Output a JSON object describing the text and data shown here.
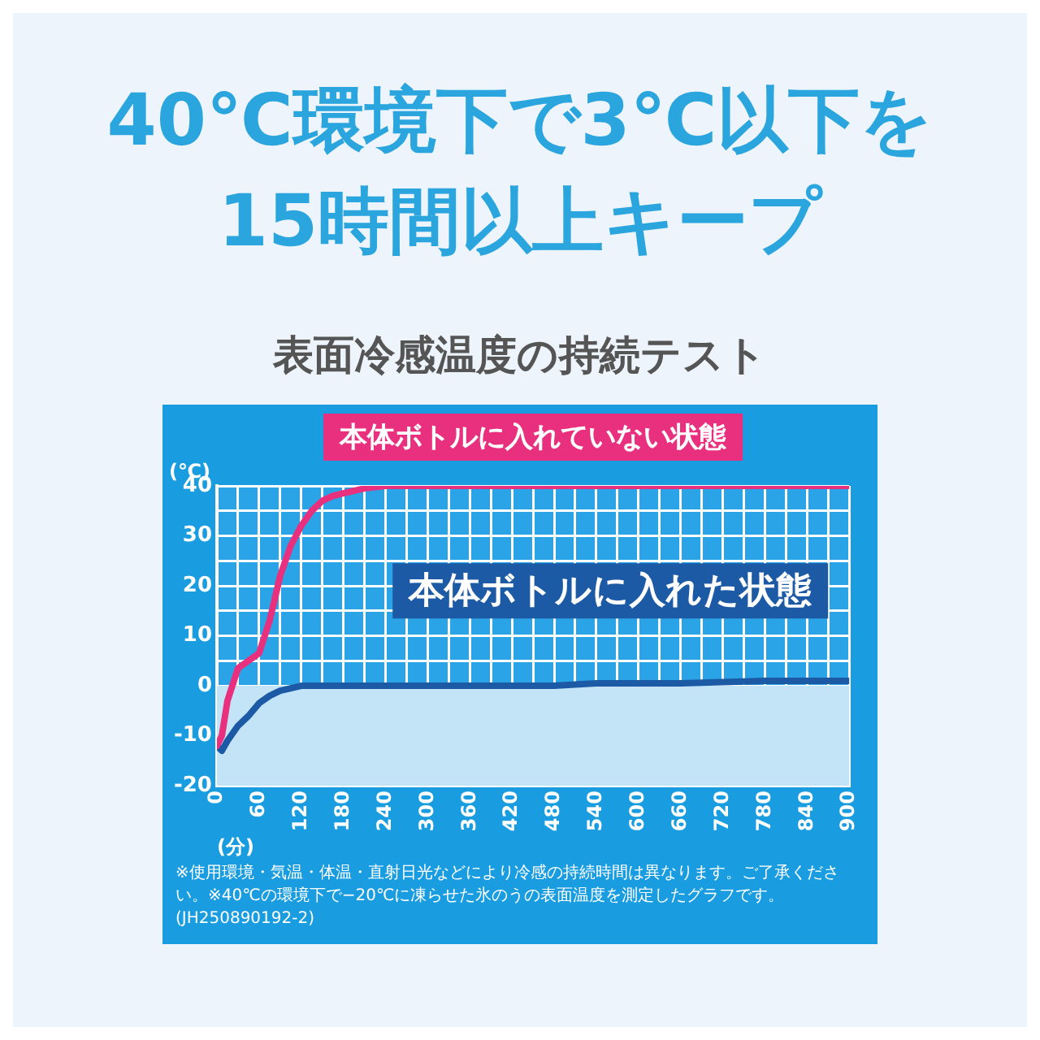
{
  "chart_data": {
    "type": "line",
    "title": "40℃環境下で3℃以下を\n15時間以上キープ",
    "subtitle": "表面冷感温度の持続テスト",
    "xlabel": "(分)",
    "ylabel": "(℃)",
    "series": [
      {
        "name": "本体ボトルに入れていない状態",
        "color": "#e8307f",
        "x": [
          0,
          7,
          15,
          30,
          45,
          60,
          75,
          90,
          105,
          120,
          135,
          150,
          165,
          180,
          210,
          240,
          300,
          420,
          540,
          660,
          780,
          900
        ],
        "values": [
          -12,
          -10,
          -3,
          3.5,
          5,
          6.5,
          13,
          22,
          28,
          32,
          35,
          37,
          38,
          38.5,
          39.5,
          40,
          40,
          40,
          40,
          40,
          40,
          40
        ]
      },
      {
        "name": "本体ボトルに入れた状態",
        "color": "#1c5aa6",
        "x": [
          0,
          7,
          15,
          30,
          45,
          60,
          75,
          90,
          105,
          120,
          180,
          300,
          420,
          480,
          540,
          660,
          780,
          900
        ],
        "values": [
          -12,
          -13,
          -11,
          -8,
          -6,
          -3.5,
          -2,
          -1,
          -0.5,
          0,
          0,
          0,
          0,
          0,
          0.5,
          0.5,
          1,
          1
        ]
      }
    ],
    "xlim": [
      0,
      900
    ],
    "xticks": [
      0,
      {
        "value": 30,
        "label": null
      },
      60,
      {
        "value": 90,
        "label": null
      },
      120,
      {
        "value": 150,
        "label": null
      },
      180,
      {
        "value": 210,
        "label": null
      },
      240,
      {
        "value": 270,
        "label": null
      },
      300,
      {
        "value": 330,
        "label": null
      },
      360,
      {
        "value": 390,
        "label": null
      },
      420,
      {
        "value": 450,
        "label": null
      },
      480,
      {
        "value": 510,
        "label": null
      },
      540,
      {
        "value": 570,
        "label": null
      },
      600,
      {
        "value": 630,
        "label": null
      },
      660,
      {
        "value": 690,
        "label": null
      },
      720,
      {
        "value": 750,
        "label": null
      },
      780,
      {
        "value": 810,
        "label": null
      },
      840,
      {
        "value": 870,
        "label": null
      },
      900
    ],
    "ylim": [
      -20,
      40
    ],
    "yticks": [
      -20,
      {
        "value": -15,
        "label": null
      },
      -10,
      {
        "value": -5,
        "label": null
      },
      0,
      {
        "value": 5,
        "label": null
      },
      10,
      {
        "value": 15,
        "label": null
      },
      20,
      {
        "value": 25,
        "label": null
      },
      30,
      {
        "value": 35,
        "label": null
      },
      40
    ],
    "grid": true,
    "marker": "none",
    "line_style": "solid",
    "bands": [
      {
        "axis": "y",
        "from": -20,
        "to": 0,
        "color": "#c3e4f7"
      }
    ],
    "annotations": [
      "※使用環境・気温・体温・直射日光などにより冷感の持続時間は異なります。ご了承ください。※40℃の環境下で−20℃に凍らせた氷のうの表面温度を測定したグラフです。(JH250890192-2)"
    ]
  }
}
